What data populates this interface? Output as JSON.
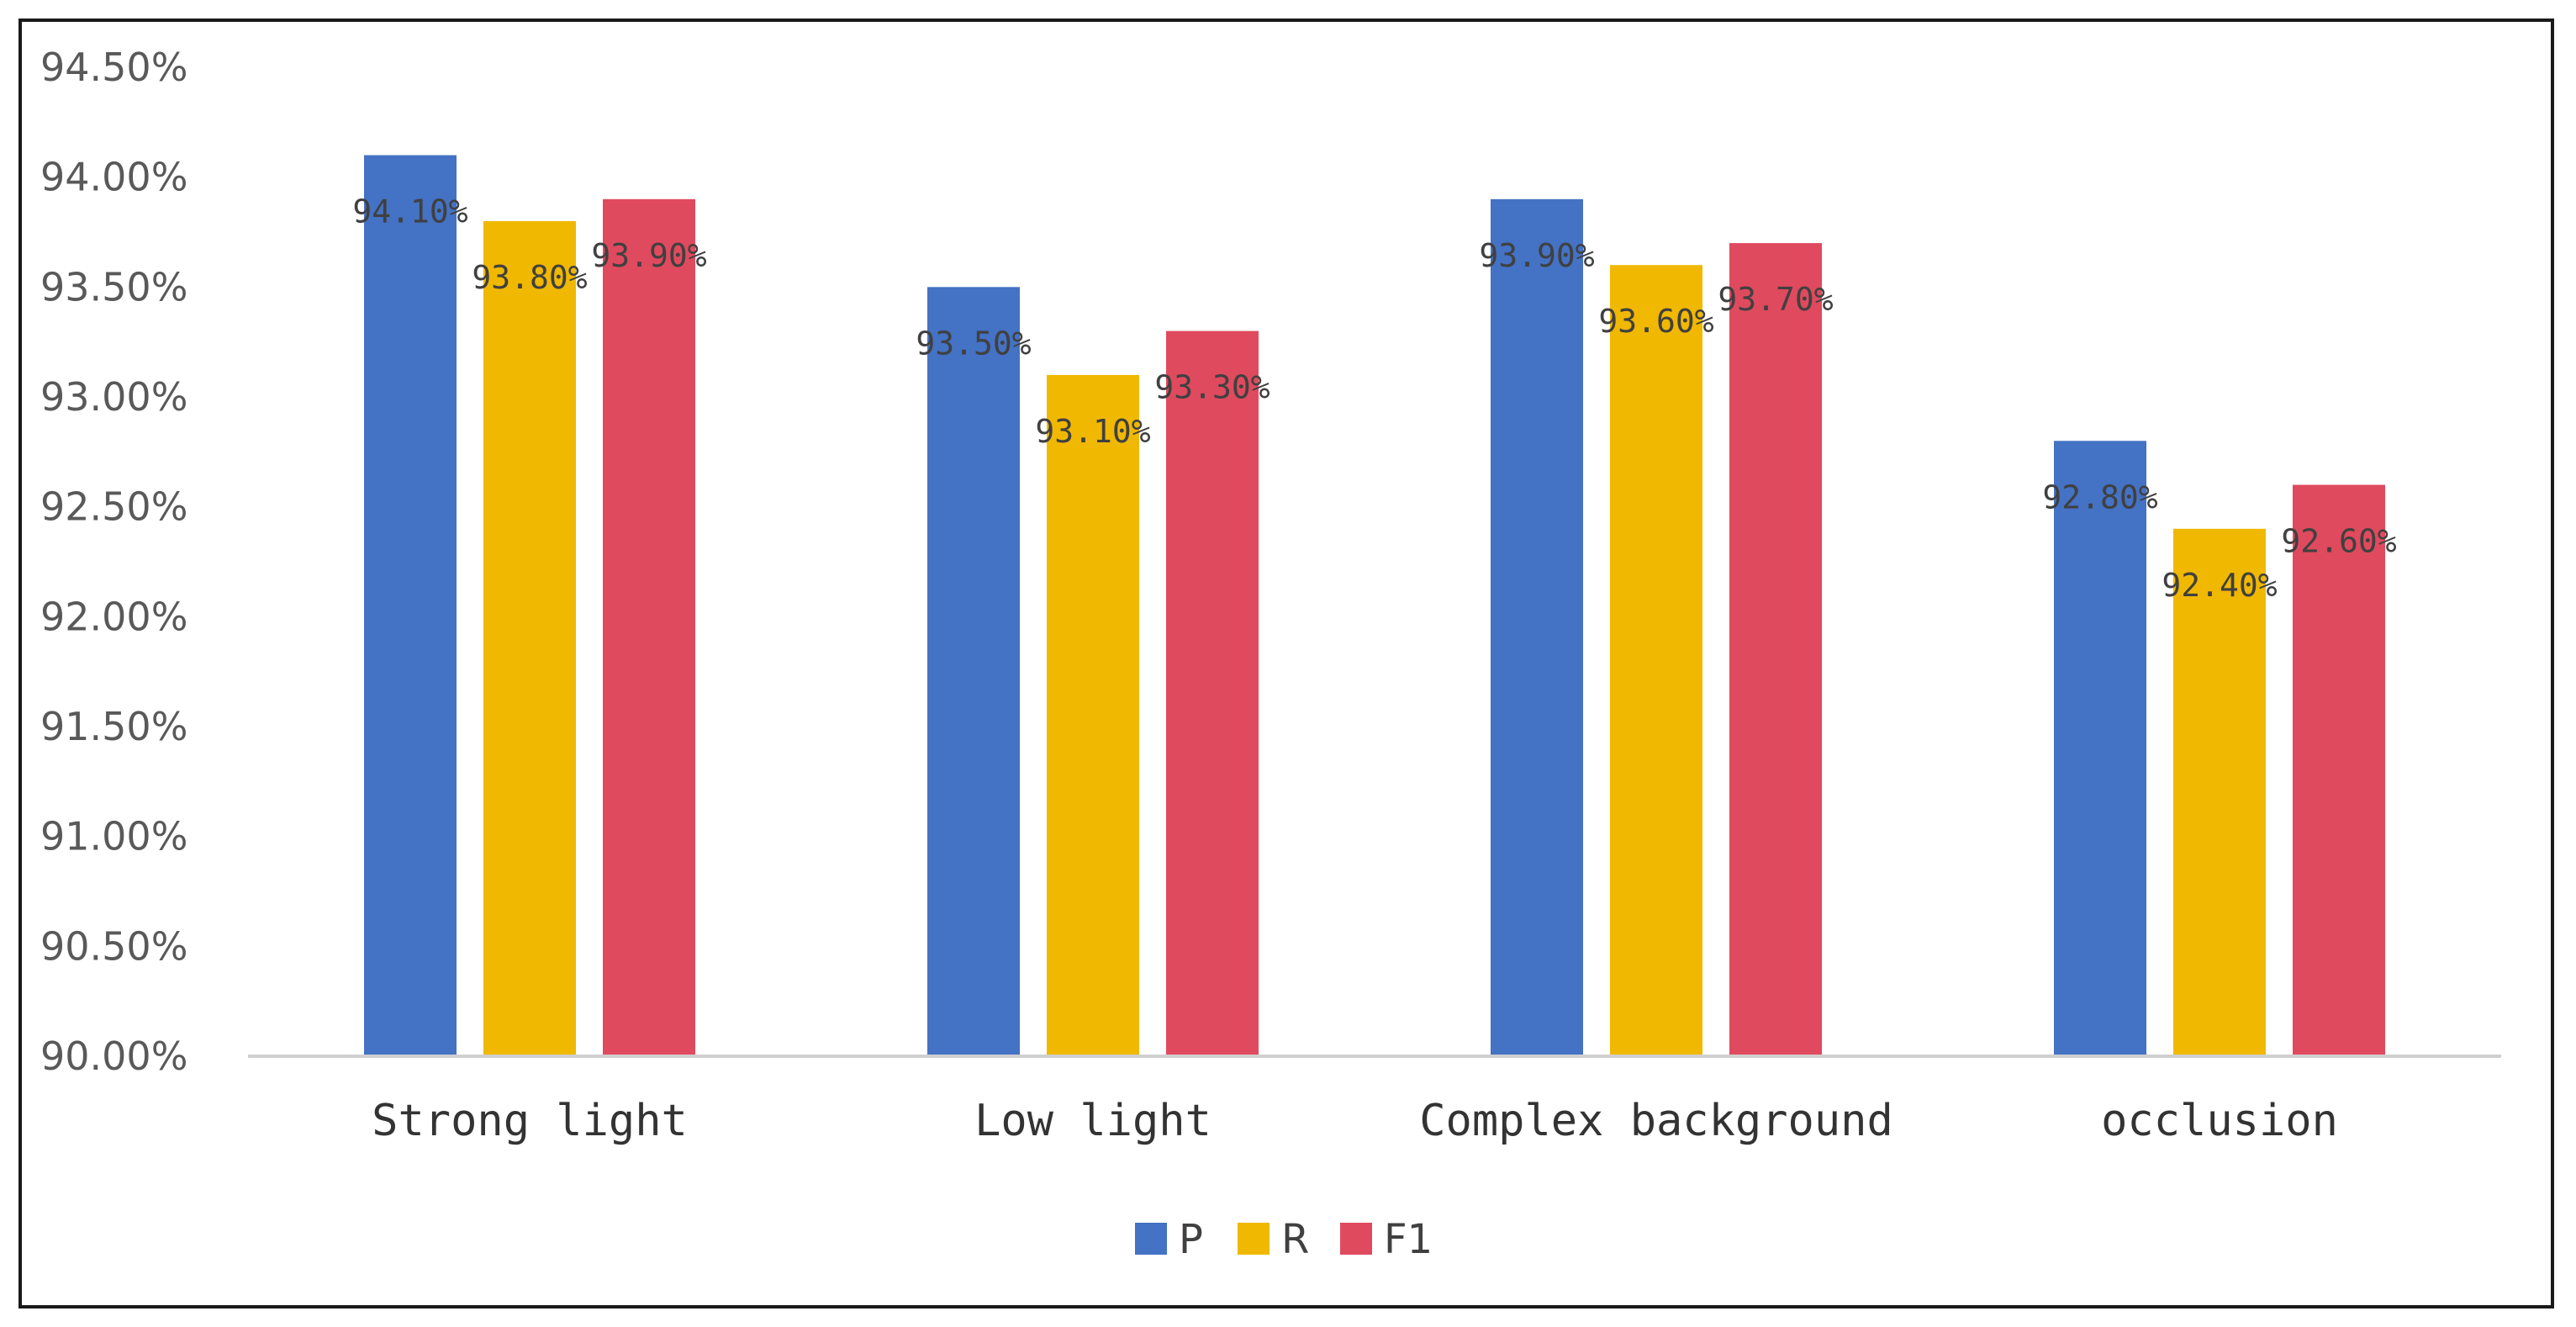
{
  "chart_data": {
    "type": "bar",
    "categories": [
      "Strong light",
      "Low light",
      "Complex background",
      "occlusion"
    ],
    "series": [
      {
        "name": "P",
        "color": "#4472C4",
        "values": [
          94.1,
          93.5,
          93.9,
          92.8
        ],
        "labels": [
          "94.10%",
          "93.50%",
          "93.90%",
          "92.80%"
        ]
      },
      {
        "name": "R",
        "color": "#F0B800",
        "values": [
          93.8,
          93.1,
          93.6,
          92.4
        ],
        "labels": [
          "93.80%",
          "93.10%",
          "93.60%",
          "92.40%"
        ]
      },
      {
        "name": "F1",
        "color": "#E04A5E",
        "values": [
          93.9,
          93.3,
          93.7,
          92.6
        ],
        "labels": [
          "93.90%",
          "93.30%",
          "93.70%",
          "92.60%"
        ]
      }
    ],
    "yticks": [
      90.0,
      90.5,
      91.0,
      91.5,
      92.0,
      92.5,
      93.0,
      93.5,
      94.0,
      94.5
    ],
    "ytick_labels": [
      "90.00%",
      "90.50%",
      "91.00%",
      "91.50%",
      "92.00%",
      "92.50%",
      "93.00%",
      "93.50%",
      "94.00%",
      "94.50%"
    ],
    "ylim": [
      90.0,
      94.5
    ],
    "title": "",
    "xlabel": "",
    "ylabel": "",
    "grid": false,
    "legend_position": "bottom"
  }
}
